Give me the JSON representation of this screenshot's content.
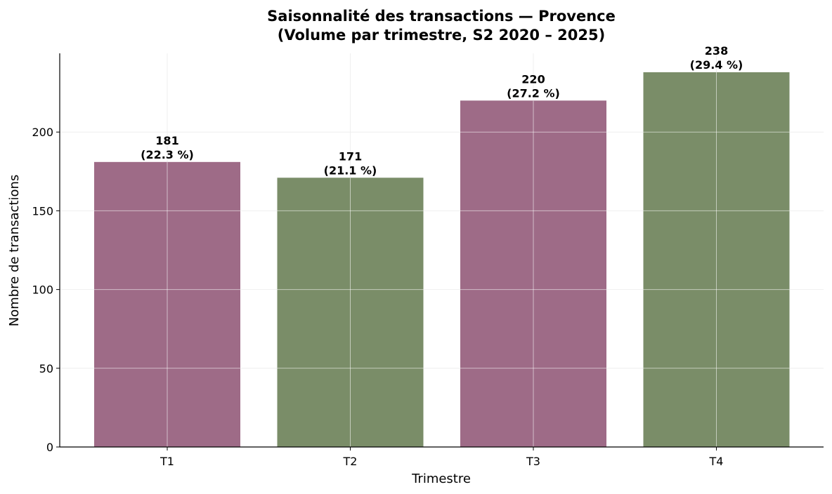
{
  "chart_data": {
    "type": "bar",
    "title": "Saisonnalité des transactions — Provence",
    "subtitle": "(Volume par trimestre, S2 2020 – 2025)",
    "xlabel": "Trimestre",
    "ylabel": "Nombre de transactions",
    "categories": [
      "T1",
      "T2",
      "T3",
      "T4"
    ],
    "values": [
      181,
      171,
      220,
      238
    ],
    "shares": [
      "(22.3 %)",
      "(21.1 %)",
      "(27.2 %)",
      "(29.4 %)"
    ],
    "bar_colors": [
      "#9e6b87",
      "#7a8d68",
      "#9e6b87",
      "#7a8d68"
    ],
    "ylim": [
      0,
      250
    ],
    "yticks": [
      0,
      50,
      100,
      150,
      200
    ],
    "grid": true,
    "legend": "none"
  }
}
